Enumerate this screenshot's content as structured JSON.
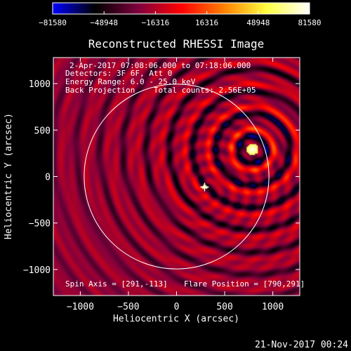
{
  "chart_data": {
    "type": "heatmap",
    "title": "Reconstructed RHESSI Image",
    "xlabel": "Heliocentric X (arcsec)",
    "ylabel": "Heliocentric Y (arcsec)",
    "xlim": [
      -1280,
      1280
    ],
    "ylim": [
      -1280,
      1280
    ],
    "x_ticks": [
      -1000,
      -500,
      0,
      500,
      1000
    ],
    "y_ticks": [
      -1000,
      -500,
      0,
      500,
      1000
    ],
    "x_tick_labels": [
      "−1000",
      "−500",
      "0",
      "500",
      "1000"
    ],
    "y_tick_labels": [
      "1000",
      "500",
      "0",
      "−500",
      "−1000"
    ],
    "colorbar": {
      "range": [
        -81580,
        81580
      ],
      "tick_values": [
        -81580,
        -48948,
        -16316,
        16316,
        48948,
        81580
      ],
      "tick_labels": [
        "−81580",
        "−48948",
        "−16316",
        "16316",
        "48948",
        "81580"
      ],
      "colors": [
        "#0000ff",
        "#000000",
        "#7f003f",
        "#ff0000",
        "#ff8000",
        "#ffff40",
        "#ffffff"
      ]
    },
    "annotations": [
      "2-Apr-2017 07:08:06.000 to 07:18:06.000",
      "Detectors: 3F 6F, Att 0",
      "Energy Range: 6.0 - 25.0 keV",
      "Back Projection    Total counts: 2.56E+05"
    ],
    "spin_axis": [
      291,
      -113
    ],
    "flare_position": [
      790,
      291
    ],
    "spin_axis_label": "Spin Axis = [291,-113]",
    "flare_position_label": "Flare Position = [790,291]",
    "solar_disk_radius": 960,
    "grid": false
  },
  "timestamp": "21-Nov-2017 00:24",
  "colors": {
    "background": "#000000",
    "foreground": "#ffffff",
    "limb": "#ffffff"
  }
}
